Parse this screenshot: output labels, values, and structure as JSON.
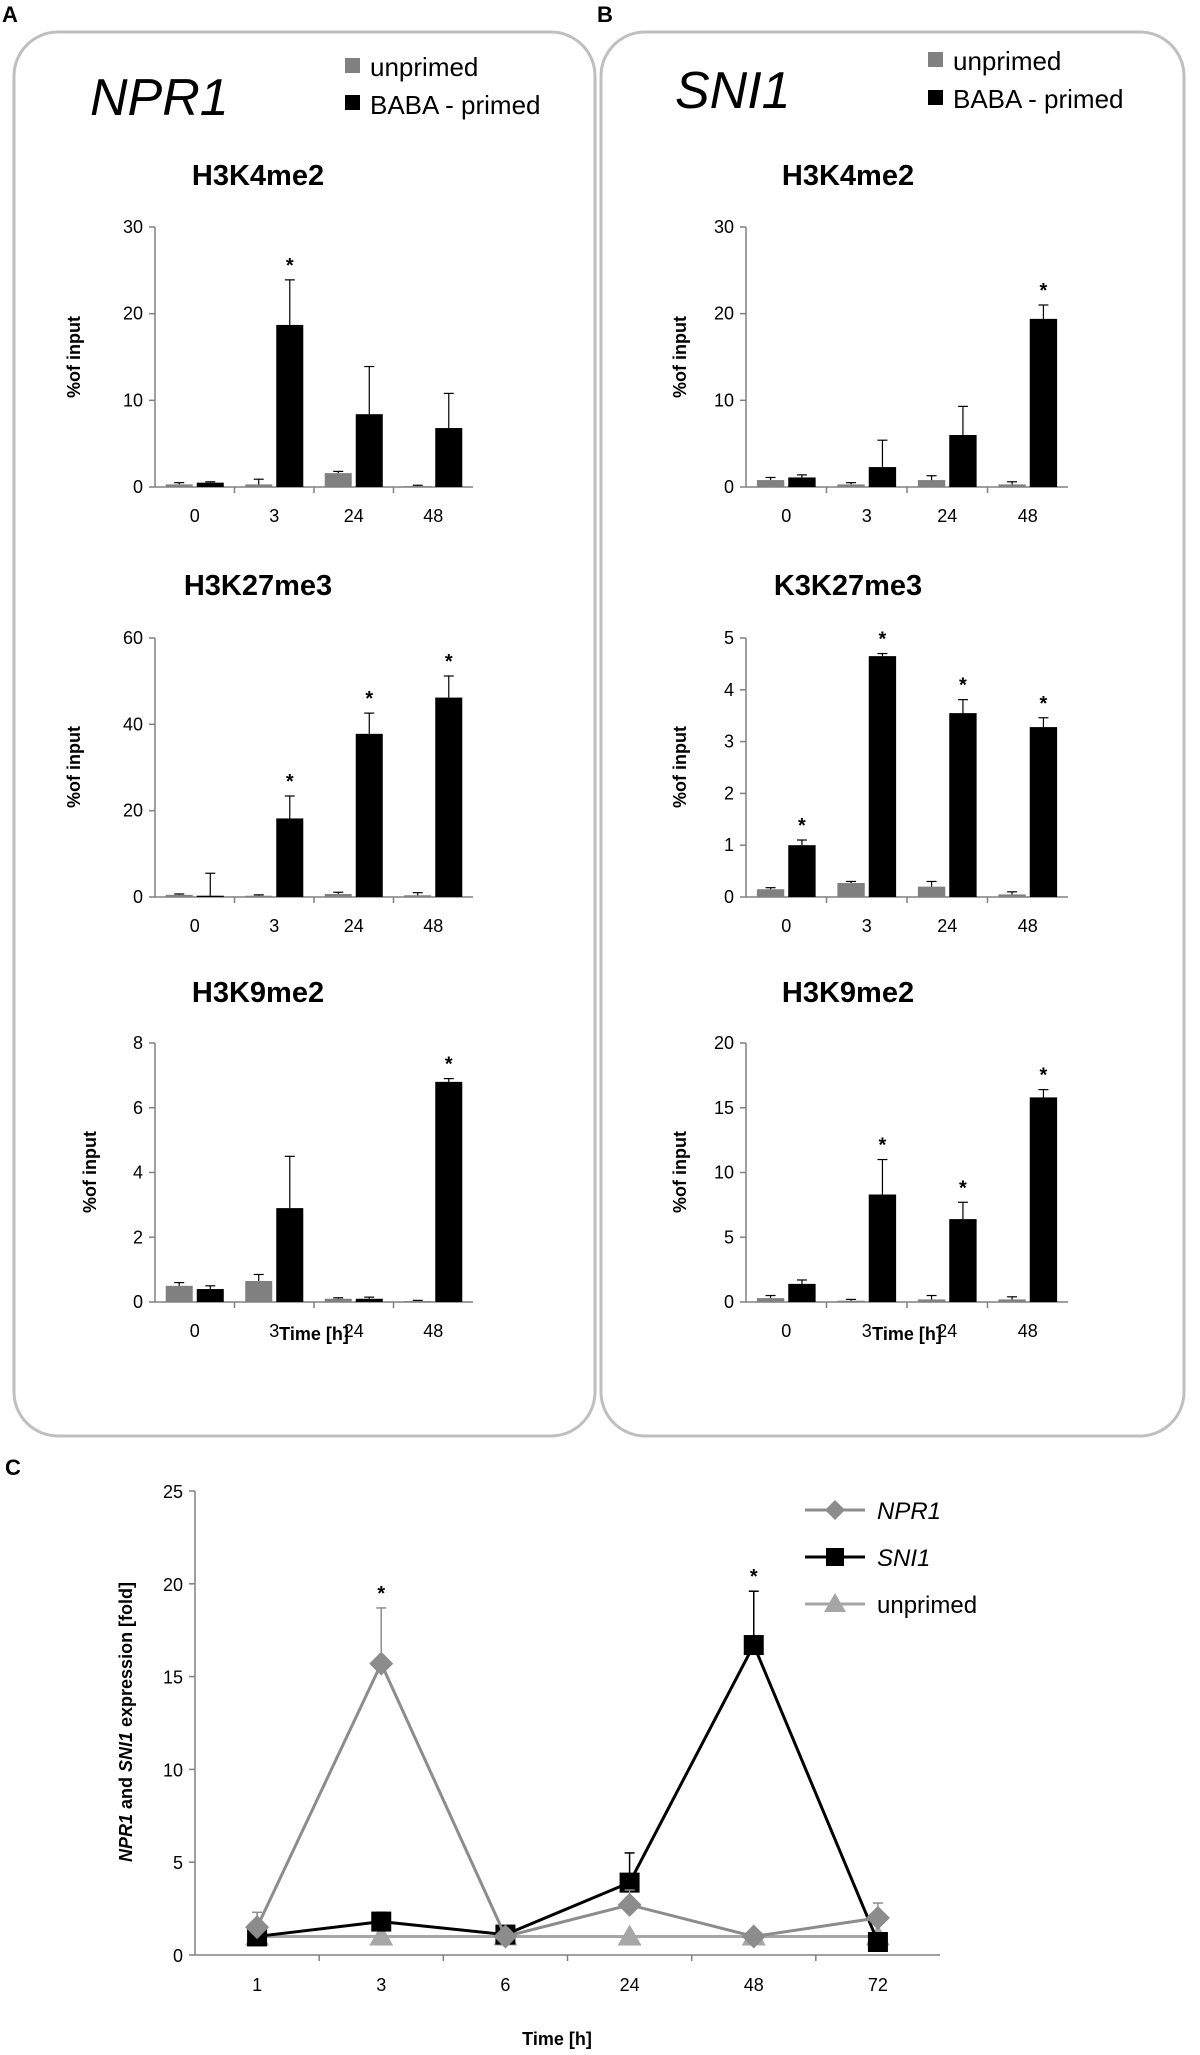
{
  "panels": {
    "A": {
      "letter": "A",
      "gene": "NPR1"
    },
    "B": {
      "letter": "B",
      "gene": "SNI1"
    },
    "C": {
      "letter": "C"
    }
  },
  "legend_ab": {
    "unprimed": {
      "label": "unprimed",
      "color": "#808080"
    },
    "primed": {
      "label": "BABA - primed",
      "color": "#000000"
    }
  },
  "chart_data": [
    {
      "id": "A1",
      "type": "bar",
      "title": "H3K4me2",
      "ylabel": "%of input",
      "xlabel": "",
      "categories": [
        "0",
        "3",
        "24",
        "48"
      ],
      "ylim": [
        0,
        30
      ],
      "yticks": [
        0,
        10,
        20,
        30
      ],
      "series": [
        {
          "name": "unprimed",
          "values": [
            0.3,
            0.3,
            1.6,
            0.1
          ],
          "errors": [
            0.2,
            0.6,
            0.2,
            0.1
          ]
        },
        {
          "name": "BABA - primed",
          "values": [
            0.5,
            18.7,
            8.4,
            6.8
          ],
          "errors": [
            0.1,
            5.2,
            5.5,
            4.0
          ]
        }
      ],
      "significant": [
        {
          "series": 1,
          "index": 1
        }
      ]
    },
    {
      "id": "A2",
      "type": "bar",
      "title": "H3K27me3",
      "ylabel": "%of input",
      "xlabel": "",
      "categories": [
        "0",
        "3",
        "24",
        "48"
      ],
      "ylim": [
        0,
        60
      ],
      "yticks": [
        0,
        20,
        40,
        60
      ],
      "series": [
        {
          "name": "unprimed",
          "values": [
            0.5,
            0.3,
            0.7,
            0.4
          ],
          "errors": [
            0.2,
            0.2,
            0.4,
            0.6
          ]
        },
        {
          "name": "BABA - primed",
          "values": [
            0.3,
            18.2,
            37.8,
            46.2
          ],
          "errors": [
            5.2,
            5.2,
            4.8,
            5.0
          ]
        }
      ],
      "significant": [
        {
          "series": 1,
          "index": 1
        },
        {
          "series": 1,
          "index": 2
        },
        {
          "series": 1,
          "index": 3
        }
      ]
    },
    {
      "id": "A3",
      "type": "bar",
      "title": "H3K9me2",
      "ylabel": "%of input",
      "xlabel": "Time [h]",
      "categories": [
        "0",
        "3",
        "24",
        "48"
      ],
      "ylim": [
        0,
        8
      ],
      "yticks": [
        0,
        2,
        4,
        6,
        8
      ],
      "series": [
        {
          "name": "unprimed",
          "values": [
            0.5,
            0.65,
            0.1,
            0.03
          ],
          "errors": [
            0.1,
            0.2,
            0.03,
            0.02
          ]
        },
        {
          "name": "BABA - primed",
          "values": [
            0.4,
            2.9,
            0.1,
            6.8
          ],
          "errors": [
            0.1,
            1.6,
            0.05,
            0.1
          ]
        }
      ],
      "significant": [
        {
          "series": 1,
          "index": 3
        }
      ]
    },
    {
      "id": "B1",
      "type": "bar",
      "title": "H3K4me2",
      "ylabel": "%of input",
      "xlabel": "",
      "categories": [
        "0",
        "3",
        "24",
        "48"
      ],
      "ylim": [
        0,
        30
      ],
      "yticks": [
        0,
        10,
        20,
        30
      ],
      "series": [
        {
          "name": "unprimed",
          "values": [
            0.8,
            0.3,
            0.8,
            0.3
          ],
          "errors": [
            0.3,
            0.2,
            0.5,
            0.3
          ]
        },
        {
          "name": "BABA - primed",
          "values": [
            1.1,
            2.3,
            6.0,
            19.4
          ],
          "errors": [
            0.3,
            3.1,
            3.3,
            1.6
          ]
        }
      ],
      "significant": [
        {
          "series": 1,
          "index": 3
        }
      ]
    },
    {
      "id": "B2",
      "type": "bar",
      "title": "K3K27me3",
      "ylabel": "%of input",
      "xlabel": "",
      "categories": [
        "0",
        "3",
        "24",
        "48"
      ],
      "ylim": [
        0,
        5
      ],
      "yticks": [
        0,
        1,
        2,
        3,
        4,
        5
      ],
      "series": [
        {
          "name": "unprimed",
          "values": [
            0.15,
            0.27,
            0.2,
            0.05
          ],
          "errors": [
            0.03,
            0.03,
            0.1,
            0.05
          ]
        },
        {
          "name": "BABA - primed",
          "values": [
            1.0,
            4.65,
            3.55,
            3.28
          ],
          "errors": [
            0.1,
            0.05,
            0.26,
            0.18
          ]
        }
      ],
      "significant": [
        {
          "series": 1,
          "index": 0
        },
        {
          "series": 1,
          "index": 1
        },
        {
          "series": 1,
          "index": 2
        },
        {
          "series": 1,
          "index": 3
        }
      ]
    },
    {
      "id": "B3",
      "type": "bar",
      "title": "H3K9me2",
      "ylabel": "%of input",
      "xlabel": "Time [h]",
      "categories": [
        "0",
        "3",
        "24",
        "48"
      ],
      "ylim": [
        0,
        20
      ],
      "yticks": [
        0,
        5,
        10,
        15,
        20
      ],
      "series": [
        {
          "name": "unprimed",
          "values": [
            0.3,
            0.1,
            0.2,
            0.2
          ],
          "errors": [
            0.2,
            0.1,
            0.3,
            0.2
          ]
        },
        {
          "name": "BABA - primed",
          "values": [
            1.4,
            8.3,
            6.4,
            15.8
          ],
          "errors": [
            0.3,
            2.7,
            1.3,
            0.6
          ]
        }
      ],
      "significant": [
        {
          "series": 1,
          "index": 1
        },
        {
          "series": 1,
          "index": 2
        },
        {
          "series": 1,
          "index": 3
        }
      ]
    },
    {
      "id": "C",
      "type": "line",
      "title": "",
      "xlabel": "Time [h]",
      "ylabel": {
        "gene1": "NPR1",
        "and": " and ",
        "gene2": "SNI1",
        "rest": " expression [fold]"
      },
      "categories": [
        "1",
        "3",
        "6",
        "24",
        "48",
        "72"
      ],
      "ylim": [
        0,
        25
      ],
      "yticks": [
        0,
        5,
        10,
        15,
        20,
        25
      ],
      "series": [
        {
          "name": "NPR1",
          "italic": true,
          "color": "#8c8c8c",
          "marker": "diamond",
          "values": [
            1.5,
            15.7,
            1.0,
            2.7,
            1.0,
            2.0
          ],
          "errors": [
            0.8,
            3.0,
            0.3,
            0.8,
            0.2,
            0.8
          ]
        },
        {
          "name": "SNI1",
          "italic": true,
          "color": "#000000",
          "marker": "square",
          "values": [
            1.0,
            1.8,
            1.1,
            3.9,
            16.7,
            0.7
          ],
          "errors": [
            0.4,
            0.5,
            0.3,
            1.6,
            2.9,
            0.4
          ]
        },
        {
          "name": "unprimed",
          "italic": false,
          "color": "#a6a6a6",
          "marker": "triangle",
          "values": [
            1.0,
            1.0,
            1.0,
            1.0,
            1.0,
            1.0
          ],
          "errors": [
            0,
            0,
            0,
            0,
            0,
            0
          ]
        }
      ],
      "significant": [
        {
          "series": 0,
          "index": 1
        },
        {
          "series": 1,
          "index": 4
        }
      ]
    }
  ]
}
